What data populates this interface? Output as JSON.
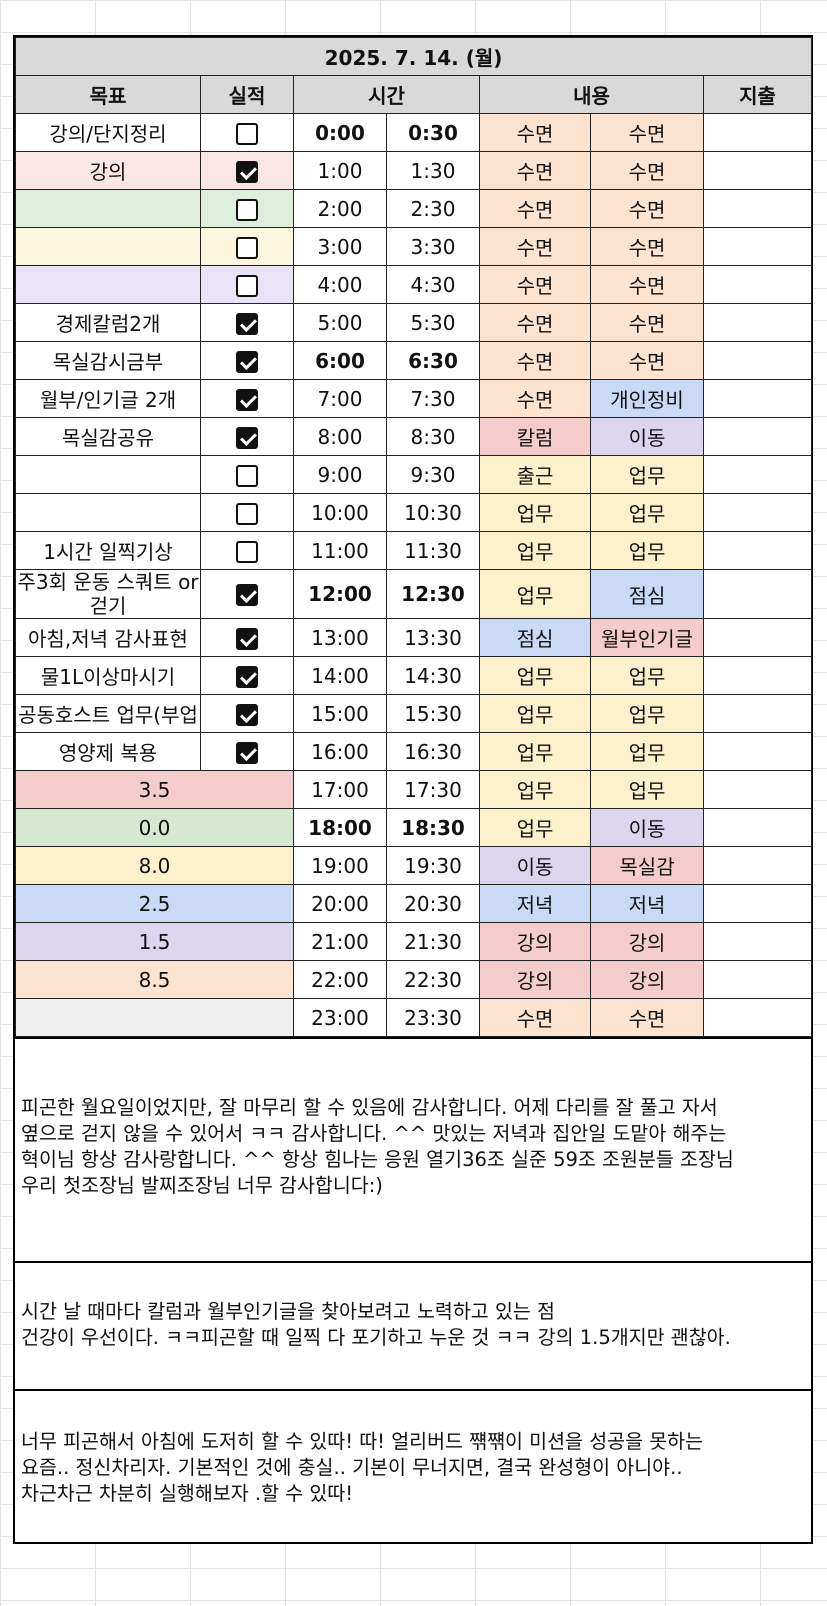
{
  "title": "2025. 7. 14. (월)",
  "headers": {
    "goal": "목표",
    "done": "실적",
    "time": "시간",
    "content": "내용",
    "expense": "지출"
  },
  "colors": {
    "sleep": "#fce4d0",
    "work": "#fdf1cc",
    "blue": "#c9daf6",
    "purple": "#dcd5ee",
    "red": "#f5cccc",
    "green": "#d6e9d0",
    "gray": "#efefef"
  },
  "rows": [
    {
      "goal": "강의/단지정리",
      "check": false,
      "t1": "0:00",
      "t2": "0:30",
      "a": "수면",
      "b": "수면"
    },
    {
      "goal": "강의",
      "check": true,
      "t1": "1:00",
      "t2": "1:30",
      "a": "수면",
      "b": "수면"
    },
    {
      "goal": "",
      "check": false,
      "t1": "2:00",
      "t2": "2:30",
      "a": "수면",
      "b": "수면"
    },
    {
      "goal": "",
      "check": false,
      "t1": "3:00",
      "t2": "3:30",
      "a": "수면",
      "b": "수면"
    },
    {
      "goal": "",
      "check": false,
      "t1": "4:00",
      "t2": "4:30",
      "a": "수면",
      "b": "수면"
    },
    {
      "goal": "경제칼럼2개",
      "check": true,
      "t1": "5:00",
      "t2": "5:30",
      "a": "수면",
      "b": "수면"
    },
    {
      "goal": "목실감시금부",
      "check": true,
      "t1": "6:00",
      "t2": "6:30",
      "a": "수면",
      "b": "수면"
    },
    {
      "goal": "월부/인기글 2개",
      "check": true,
      "t1": "7:00",
      "t2": "7:30",
      "a": "수면",
      "b": "개인정비"
    },
    {
      "goal": "목실감공유",
      "check": true,
      "t1": "8:00",
      "t2": "8:30",
      "a": "칼럼",
      "b": "이동"
    },
    {
      "goal": "",
      "check": false,
      "t1": "9:00",
      "t2": "9:30",
      "a": "출근",
      "b": "업무"
    },
    {
      "goal": "",
      "check": false,
      "t1": "10:00",
      "t2": "10:30",
      "a": "업무",
      "b": "업무"
    },
    {
      "goal": "1시간 일찍기상",
      "check": false,
      "t1": "11:00",
      "t2": "11:30",
      "a": "업무",
      "b": "업무"
    },
    {
      "goal": "주3회 운동\n스쿼트 or 걷기",
      "check": true,
      "t1": "12:00",
      "t2": "12:30",
      "a": "업무",
      "b": "점심"
    },
    {
      "goal": "아침,저녁 감사표현",
      "check": true,
      "t1": "13:00",
      "t2": "13:30",
      "a": "점심",
      "b": "월부인기글"
    },
    {
      "goal": "물1L이상마시기",
      "check": true,
      "t1": "14:00",
      "t2": "14:30",
      "a": "업무",
      "b": "업무"
    },
    {
      "goal": "공동호스트 업무(부업",
      "check": true,
      "t1": "15:00",
      "t2": "15:30",
      "a": "업무",
      "b": "업무"
    },
    {
      "goal": "영양제 복용",
      "check": true,
      "t1": "16:00",
      "t2": "16:30",
      "a": "업무",
      "b": "업무"
    },
    {
      "summary": "3.5",
      "t1": "17:00",
      "t2": "17:30",
      "a": "업무",
      "b": "업무"
    },
    {
      "summary": "0.0",
      "t1": "18:00",
      "t2": "18:30",
      "a": "업무",
      "b": "이동"
    },
    {
      "summary": "8.0",
      "t1": "19:00",
      "t2": "19:30",
      "a": "이동",
      "b": "목실감"
    },
    {
      "summary": "2.5",
      "t1": "20:00",
      "t2": "20:30",
      "a": "저녁",
      "b": "저녁"
    },
    {
      "summary": "1.5",
      "t1": "21:00",
      "t2": "21:30",
      "a": "강의",
      "b": "강의"
    },
    {
      "summary": "8.5",
      "t1": "22:00",
      "t2": "22:30",
      "a": "강의",
      "b": "강의"
    },
    {
      "summary": "",
      "t1": "23:00",
      "t2": "23:30",
      "a": "수면",
      "b": "수면"
    }
  ],
  "notes": {
    "gratitude": "피곤한 월요일이었지만, 잘 마무리 할 수 있음에 감사합니다. 어제 다리를 잘 풀고 자서\n옆으로 걷지 않을 수 있어서 ㅋㅋ 감사합니다. ^^ 맛있는 저녁과 집안일 도맡아 해주는\n혁이님 항상 감사랑합니다. ^^  항상 힘나는 응원 열기36조 실준 59조 조원분들 조장님\n우리 첫조장님 발찌조장님 너무 감사합니다:)",
    "praise": "시간 날 때마다 칼럼과 월부인기글을 찾아보려고 노력하고 있는 점\n건강이 우선이다. ㅋㅋ피곤할 때 일찍 다 포기하고 누운 것 ㅋㅋ 강의 1.5개지만 괜찮아.",
    "reflection": "너무 피곤해서 아침에 도저히 할 수 있따! 따! 얼리버드 쨲쨲이 미션을 성공을 못하는\n요즘.. 정신차리자. 기본적인 것에 충실.. 기본이 무너지면, 결국 완성형이 아니야..\n차근차근 차분히 실행해보자 .할 수 있따!"
  }
}
